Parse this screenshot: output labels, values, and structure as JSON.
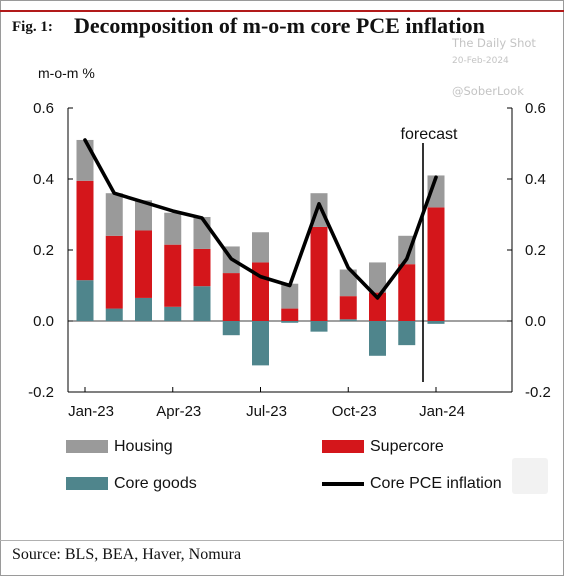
{
  "figure": {
    "label": "Fig. 1:",
    "title": "Decomposition of m-o-m core PCE inflation",
    "ylabel": "m-o-m %",
    "source": "Source: BLS, BEA, Haver, Nomura"
  },
  "watermark": {
    "line1": "The Daily Shot",
    "line2": "20-Feb-2024",
    "line3": "@SoberLook"
  },
  "chart_data": {
    "type": "bar",
    "stacked": true,
    "categories": [
      "Jan-23",
      "Feb-23",
      "Mar-23",
      "Apr-23",
      "May-23",
      "Jun-23",
      "Jul-23",
      "Aug-23",
      "Sep-23",
      "Oct-23",
      "Nov-23",
      "Dec-23",
      "Jan-24"
    ],
    "x_tick_labels": [
      "Jan-23",
      "Apr-23",
      "Jul-23",
      "Oct-23",
      "Jan-24"
    ],
    "ylim": [
      -0.2,
      0.6
    ],
    "yticks": [
      -0.2,
      0.0,
      0.2,
      0.4,
      0.6
    ],
    "y_tick_labels": [
      "-0.2",
      "0.0",
      "0.2",
      "0.4",
      "0.6"
    ],
    "series": [
      {
        "name": "Core goods",
        "kind": "bar",
        "color": "#4f858c",
        "values": [
          0.115,
          0.035,
          0.065,
          0.04,
          0.098,
          -0.04,
          -0.125,
          -0.005,
          -0.03,
          0.005,
          -0.098,
          -0.068,
          -0.008
        ]
      },
      {
        "name": "Supercore",
        "kind": "bar",
        "color": "#d4161b",
        "values": [
          0.28,
          0.205,
          0.19,
          0.175,
          0.105,
          0.135,
          0.165,
          0.035,
          0.265,
          0.065,
          0.08,
          0.16,
          0.32
        ]
      },
      {
        "name": "Housing",
        "kind": "bar",
        "color": "#9a9a9a",
        "values": [
          0.115,
          0.12,
          0.085,
          0.09,
          0.09,
          0.075,
          0.085,
          0.07,
          0.095,
          0.075,
          0.085,
          0.08,
          0.09
        ]
      },
      {
        "name": "Core PCE inflation",
        "kind": "line",
        "color": "#000000",
        "values": [
          0.51,
          0.36,
          0.335,
          0.31,
          0.29,
          0.175,
          0.125,
          0.1,
          0.33,
          0.15,
          0.065,
          0.175,
          0.405
        ]
      }
    ],
    "annotation": {
      "text": "forecast",
      "at_category": "Jan-24"
    },
    "legend": {
      "position": "bottom"
    }
  },
  "legend_items": [
    {
      "label": "Housing",
      "color": "#9a9a9a",
      "type": "box"
    },
    {
      "label": "Supercore",
      "color": "#d4161b",
      "type": "box"
    },
    {
      "label": "Core goods",
      "color": "#4f858c",
      "type": "box"
    },
    {
      "label": "Core PCE inflation",
      "color": "#000000",
      "type": "line"
    }
  ]
}
